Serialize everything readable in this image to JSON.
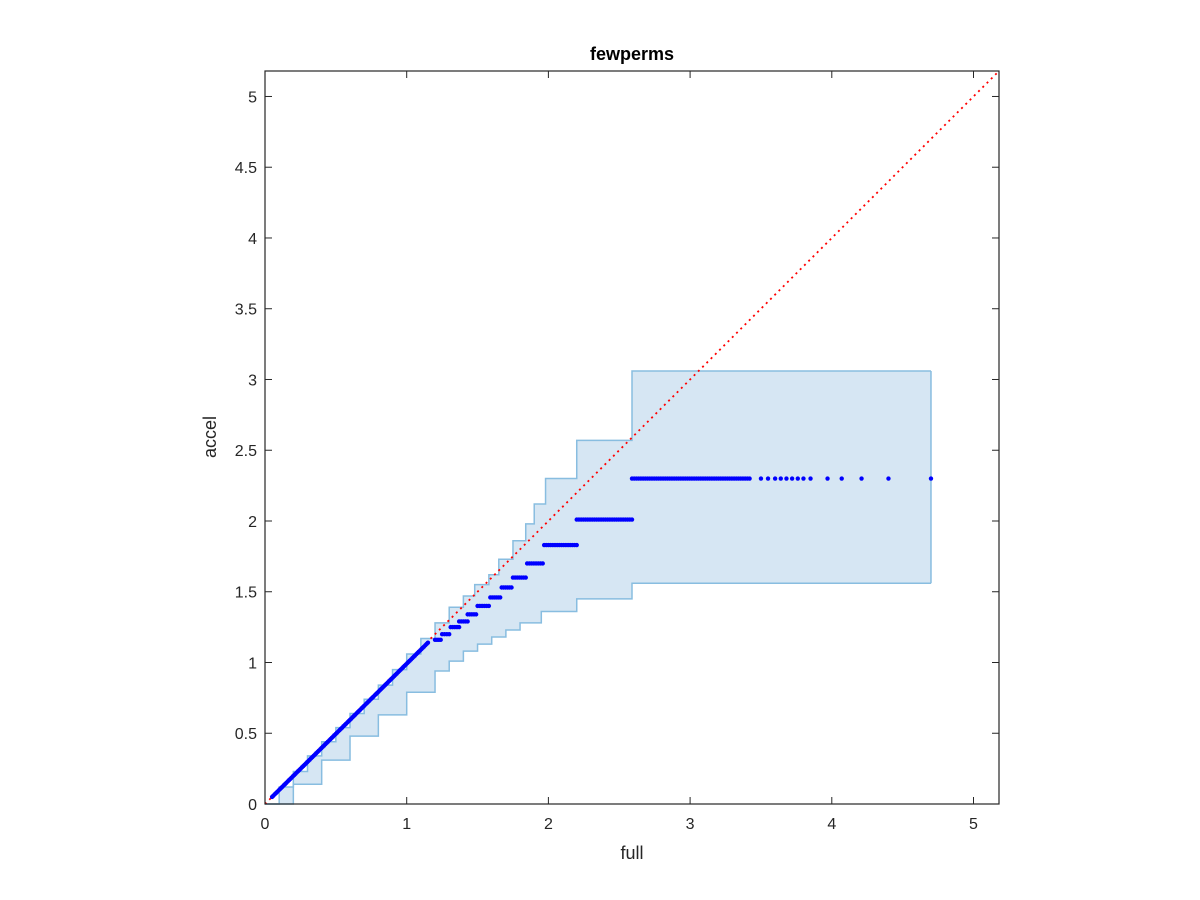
{
  "chart_data": {
    "type": "scatter",
    "title": "fewperms",
    "xlabel": "full",
    "ylabel": "accel",
    "xlim": [
      0,
      5.18
    ],
    "ylim": [
      0,
      5.18
    ],
    "xticks": [
      0,
      1,
      2,
      3,
      4,
      5
    ],
    "xtick_labels": [
      "0",
      "1",
      "2",
      "3",
      "4",
      "5"
    ],
    "yticks": [
      0,
      0.5,
      1,
      1.5,
      2,
      2.5,
      3,
      3.5,
      4,
      4.5,
      5
    ],
    "ytick_labels": [
      "0",
      "0.5",
      "1",
      "1.5",
      "2",
      "2.5",
      "3",
      "3.5",
      "4",
      "4.5",
      "5"
    ],
    "grid": false,
    "colors": {
      "points": "#0000ff",
      "reference_line": "#ff0000",
      "band_fill": "#d6e6f3",
      "band_edge": "#88bde0",
      "axes": "#262626"
    },
    "reference_line": {
      "x": [
        0,
        5.18
      ],
      "y": [
        0,
        5.18
      ],
      "style": "dotted"
    },
    "band_upper": [
      [
        0,
        0
      ],
      [
        0.1,
        0.12
      ],
      [
        0.2,
        0.23
      ],
      [
        0.3,
        0.34
      ],
      [
        0.4,
        0.44
      ],
      [
        0.5,
        0.54
      ],
      [
        0.6,
        0.64
      ],
      [
        0.7,
        0.74
      ],
      [
        0.8,
        0.84
      ],
      [
        0.9,
        0.95
      ],
      [
        1.0,
        1.06
      ],
      [
        1.1,
        1.17
      ],
      [
        1.2,
        1.28
      ],
      [
        1.3,
        1.39
      ],
      [
        1.4,
        1.47
      ],
      [
        1.48,
        1.55
      ],
      [
        1.58,
        1.62
      ],
      [
        1.65,
        1.73
      ],
      [
        1.75,
        1.86
      ],
      [
        1.84,
        1.98
      ],
      [
        1.9,
        2.12
      ],
      [
        1.98,
        2.3
      ],
      [
        2.2,
        2.57
      ],
      [
        2.59,
        3.06
      ],
      [
        4.7,
        3.06
      ]
    ],
    "band_lower": [
      [
        0,
        0
      ],
      [
        0.2,
        0.14
      ],
      [
        0.4,
        0.31
      ],
      [
        0.6,
        0.48
      ],
      [
        0.8,
        0.63
      ],
      [
        1.0,
        0.79
      ],
      [
        1.2,
        0.94
      ],
      [
        1.3,
        1.01
      ],
      [
        1.4,
        1.08
      ],
      [
        1.5,
        1.13
      ],
      [
        1.6,
        1.18
      ],
      [
        1.7,
        1.23
      ],
      [
        1.8,
        1.28
      ],
      [
        1.95,
        1.36
      ],
      [
        2.2,
        1.45
      ],
      [
        2.59,
        1.56
      ],
      [
        4.7,
        1.56
      ]
    ],
    "points": {
      "diagonal_segment": {
        "x_start": 0.05,
        "x_end": 1.15,
        "y_start": 0.05,
        "y_end": 1.14
      },
      "plateaus": [
        {
          "x_start": 1.2,
          "x_end": 1.24,
          "y": 1.16
        },
        {
          "x_start": 1.25,
          "x_end": 1.3,
          "y": 1.2
        },
        {
          "x_start": 1.31,
          "x_end": 1.37,
          "y": 1.25
        },
        {
          "x_start": 1.37,
          "x_end": 1.43,
          "y": 1.29
        },
        {
          "x_start": 1.43,
          "x_end": 1.49,
          "y": 1.34
        },
        {
          "x_start": 1.5,
          "x_end": 1.58,
          "y": 1.4
        },
        {
          "x_start": 1.59,
          "x_end": 1.66,
          "y": 1.46
        },
        {
          "x_start": 1.67,
          "x_end": 1.74,
          "y": 1.53
        },
        {
          "x_start": 1.75,
          "x_end": 1.84,
          "y": 1.6
        },
        {
          "x_start": 1.85,
          "x_end": 1.96,
          "y": 1.7
        },
        {
          "x_start": 1.97,
          "x_end": 2.2,
          "y": 1.83
        },
        {
          "x_start": 2.2,
          "x_end": 2.59,
          "y": 2.01
        },
        {
          "x_start": 2.59,
          "x_end": 3.42,
          "y": 2.3
        }
      ],
      "tail_x": [
        3.5,
        3.55,
        3.6,
        3.64,
        3.68,
        3.72,
        3.76,
        3.8,
        3.85,
        3.97,
        4.07,
        4.21,
        4.4,
        4.7
      ],
      "tail_y": 2.3
    }
  }
}
